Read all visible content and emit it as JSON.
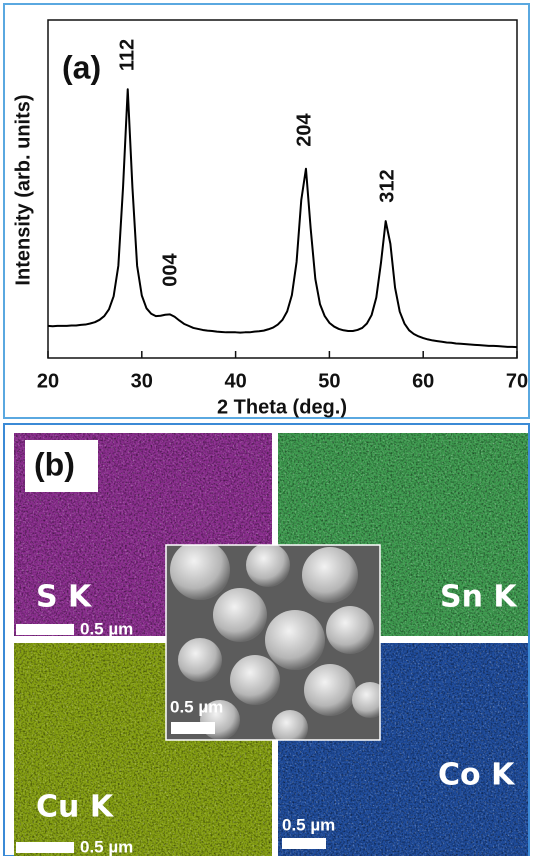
{
  "chart_data": {
    "type": "line",
    "color": "#000000",
    "xlabel": "2 Theta (deg.)",
    "ylabel": "Intensity (arb. units)",
    "annotations": [
      "(a)",
      "112",
      "004",
      "204",
      "312"
    ],
    "x": [
      20,
      20.5,
      21,
      21.5,
      22,
      22.5,
      23,
      23.5,
      24,
      24.5,
      25,
      25.5,
      26,
      26.5,
      27,
      27.5,
      28,
      28.5,
      29,
      29.5,
      30,
      30.5,
      31,
      31.5,
      32,
      32.5,
      33,
      33.5,
      34,
      34.5,
      35,
      35.5,
      36,
      36.5,
      37,
      37.5,
      38,
      38.5,
      39,
      39.5,
      40,
      40.5,
      41,
      41.5,
      42,
      42.5,
      43,
      43.5,
      44,
      44.5,
      45,
      45.5,
      46,
      46.5,
      47,
      47.5,
      48,
      48.5,
      49,
      49.5,
      50,
      50.5,
      51,
      51.5,
      52,
      52.5,
      53,
      53.5,
      54,
      54.5,
      55,
      55.5,
      56,
      56.5,
      57,
      57.5,
      58,
      58.5,
      59,
      59.5,
      60,
      60.5,
      61,
      61.5,
      62,
      62.5,
      63,
      63.5,
      64,
      64.5,
      65,
      65.5,
      66,
      66.5,
      67,
      67.5,
      68,
      68.5,
      69,
      69.5,
      70
    ],
    "values": [
      9.5,
      9.4,
      9.5,
      9.5,
      9.5,
      9.6,
      9.6,
      9.8,
      9.9,
      10.2,
      10.6,
      11.3,
      12.4,
      14.4,
      18.3,
      27.3,
      50.5,
      79.5,
      50.5,
      27.3,
      18.5,
      14.7,
      13.1,
      12.4,
      12.5,
      12.8,
      12.9,
      12.2,
      11.1,
      10.1,
      9.5,
      8.9,
      8.6,
      8.3,
      8.1,
      8.0,
      7.8,
      7.7,
      7.6,
      7.6,
      7.6,
      7.5,
      7.6,
      7.6,
      7.8,
      7.9,
      8.1,
      8.5,
      9.0,
      9.9,
      11.3,
      13.8,
      18.6,
      28.4,
      46.7,
      56.0,
      38.4,
      23.4,
      15.9,
      12.4,
      10.4,
      9.3,
      8.6,
      8.2,
      8.0,
      8.0,
      8.3,
      8.9,
      10.2,
      12.7,
      17.9,
      28.2,
      40.5,
      33.8,
      20.8,
      13.7,
      10.2,
      8.2,
      7.1,
      6.4,
      5.9,
      5.5,
      5.2,
      5.0,
      4.8,
      4.6,
      4.5,
      4.3,
      4.2,
      4.1,
      4.0,
      3.9,
      3.8,
      3.7,
      3.6,
      3.6,
      3.5,
      3.4,
      3.3,
      3.3,
      3.2
    ],
    "xlim": [
      20,
      70
    ],
    "xticks": [
      20,
      30,
      40,
      50,
      60,
      70
    ],
    "ylim": [
      0,
      100
    ]
  },
  "eds": {
    "label": "(b)",
    "maps": [
      {
        "element": "S K",
        "scale_bar": "0.5 µm"
      },
      {
        "element": "Sn K"
      },
      {
        "element": "Cu K",
        "scale_bar": "0.5 µm"
      },
      {
        "element": "Co K",
        "scale_bar": "0.5 µm"
      }
    ],
    "sem_scale_bar": "0.5 µm"
  }
}
